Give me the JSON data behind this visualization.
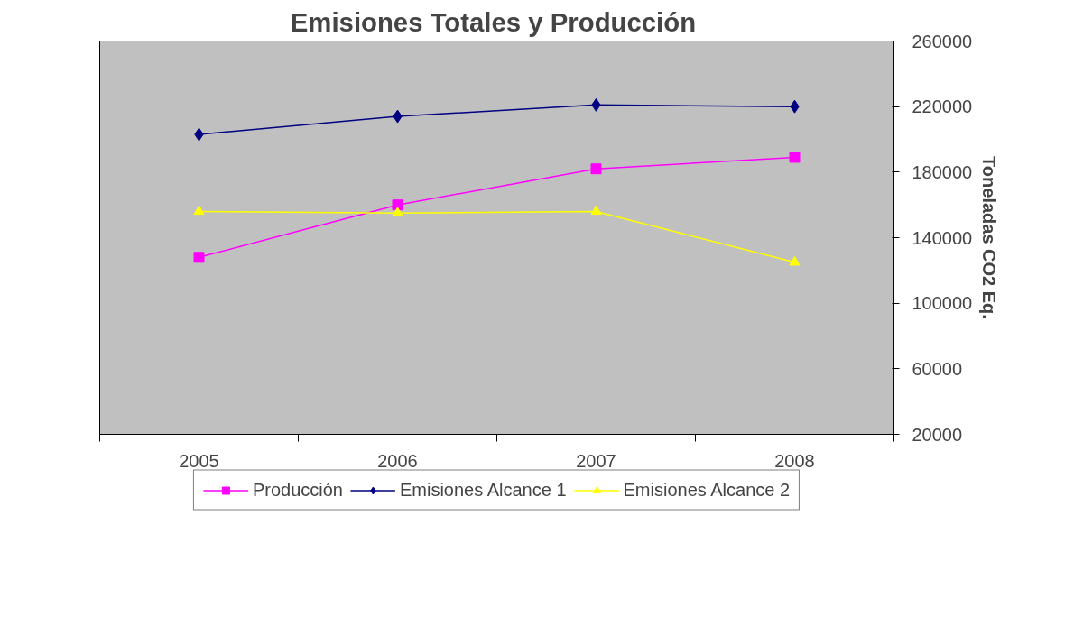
{
  "chart_data": {
    "type": "line",
    "title": "Emisiones Totales  y Producción",
    "ylabel": "Toneladas CO2 Eq.",
    "categories": [
      "2005",
      "2006",
      "2007",
      "2008"
    ],
    "ylim": [
      20000,
      260000
    ],
    "yticks": [
      20000,
      60000,
      100000,
      140000,
      180000,
      220000,
      260000
    ],
    "grid": false,
    "legend": "bottom",
    "series": [
      {
        "name": "Producción",
        "color": "#ff00ff",
        "marker": "square",
        "values": [
          128000,
          160000,
          182000,
          189000
        ]
      },
      {
        "name": "Emisiones Alcance 1",
        "color": "#000080",
        "marker": "diamond",
        "values": [
          203000,
          214000,
          221000,
          220000
        ]
      },
      {
        "name": "Emisiones Alcance 2",
        "color": "#ffff00",
        "marker": "triangle",
        "values": [
          156000,
          155000,
          156000,
          125000
        ]
      }
    ]
  }
}
